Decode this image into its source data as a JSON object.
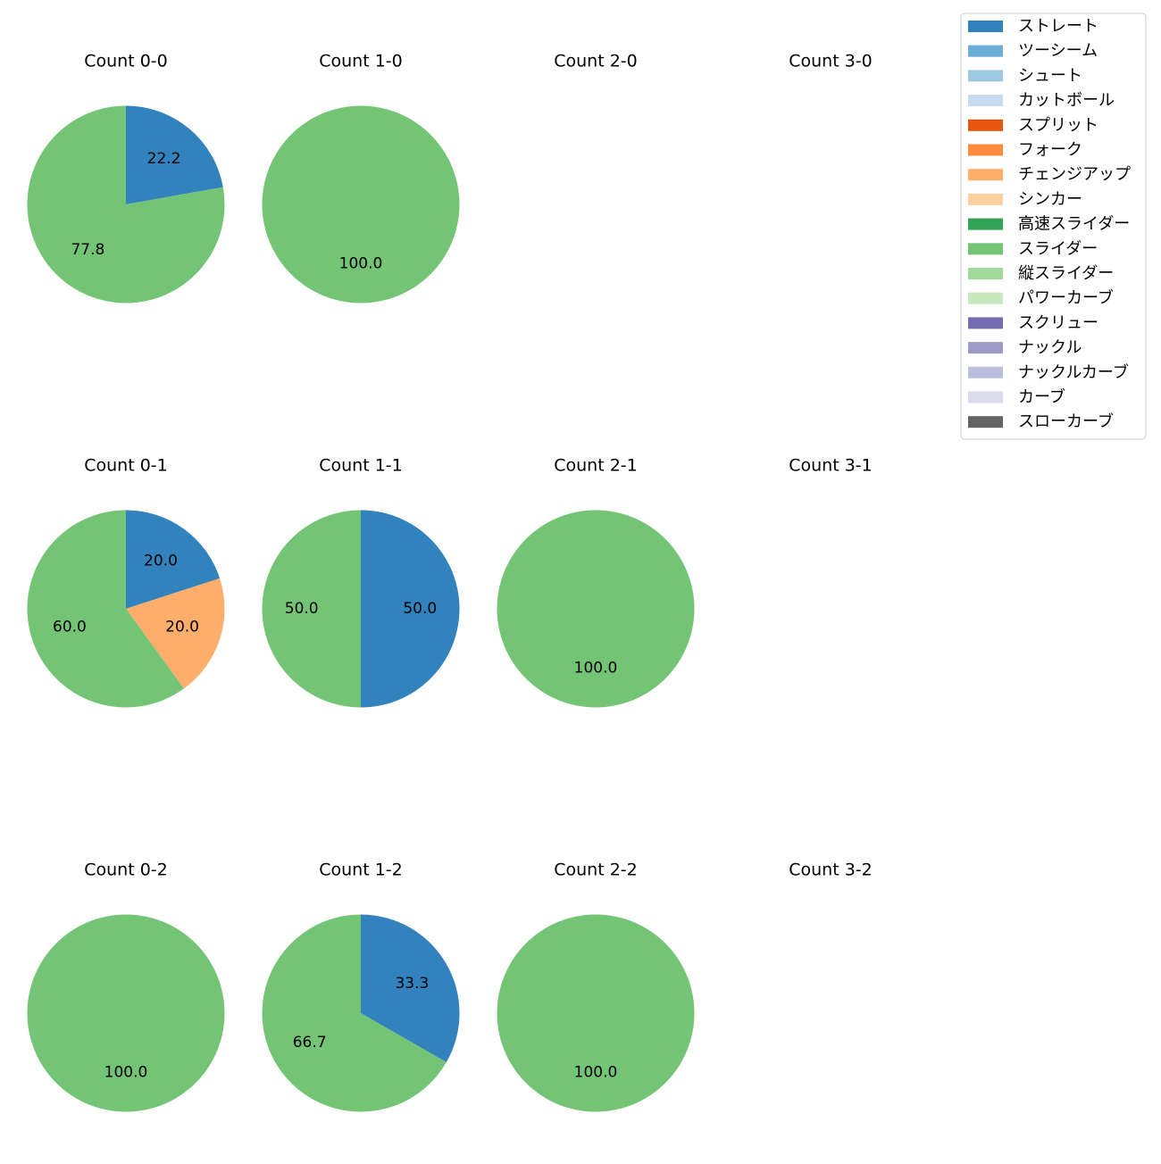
{
  "chart_data": {
    "type": "pie",
    "legend": {
      "placement": "top-right",
      "entries": [
        {
          "label": "ストレート",
          "color": "#3182bd"
        },
        {
          "label": "ツーシーム",
          "color": "#6baed6"
        },
        {
          "label": "シュート",
          "color": "#9ecae1"
        },
        {
          "label": "カットボール",
          "color": "#c6dbef"
        },
        {
          "label": "スプリット",
          "color": "#e6550d"
        },
        {
          "label": "フォーク",
          "color": "#fd8d3c"
        },
        {
          "label": "チェンジアップ",
          "color": "#fdae6b"
        },
        {
          "label": "シンカー",
          "color": "#fdd0a2"
        },
        {
          "label": "高速スライダー",
          "color": "#31a354"
        },
        {
          "label": "スライダー",
          "color": "#74c476"
        },
        {
          "label": "縦スライダー",
          "color": "#a1d99b"
        },
        {
          "label": "パワーカーブ",
          "color": "#c7e9c0"
        },
        {
          "label": "スクリュー",
          "color": "#756bb1"
        },
        {
          "label": "ナックル",
          "color": "#9e9ac8"
        },
        {
          "label": "ナックルカーブ",
          "color": "#bcbddc"
        },
        {
          "label": "カーブ",
          "color": "#dadaeb"
        },
        {
          "label": "スローカーブ",
          "color": "#636363"
        }
      ]
    },
    "panels": [
      {
        "title": "Count 0-0",
        "row": 0,
        "col": 0,
        "slices": [
          {
            "pitch": "ストレート",
            "value": 22.2,
            "label": "22.2"
          },
          {
            "pitch": "スライダー",
            "value": 77.8,
            "label": "77.8"
          }
        ]
      },
      {
        "title": "Count 1-0",
        "row": 0,
        "col": 1,
        "slices": [
          {
            "pitch": "スライダー",
            "value": 100.0,
            "label": "100.0"
          }
        ]
      },
      {
        "title": "Count 2-0",
        "row": 0,
        "col": 2,
        "slices": []
      },
      {
        "title": "Count 3-0",
        "row": 0,
        "col": 3,
        "slices": []
      },
      {
        "title": "Count 0-1",
        "row": 1,
        "col": 0,
        "slices": [
          {
            "pitch": "ストレート",
            "value": 20.0,
            "label": "20.0"
          },
          {
            "pitch": "チェンジアップ",
            "value": 20.0,
            "label": "20.0"
          },
          {
            "pitch": "スライダー",
            "value": 60.0,
            "label": "60.0"
          }
        ]
      },
      {
        "title": "Count 1-1",
        "row": 1,
        "col": 1,
        "slices": [
          {
            "pitch": "ストレート",
            "value": 50.0,
            "label": "50.0"
          },
          {
            "pitch": "スライダー",
            "value": 50.0,
            "label": "50.0"
          }
        ]
      },
      {
        "title": "Count 2-1",
        "row": 1,
        "col": 2,
        "slices": [
          {
            "pitch": "スライダー",
            "value": 100.0,
            "label": "100.0"
          }
        ]
      },
      {
        "title": "Count 3-1",
        "row": 1,
        "col": 3,
        "slices": []
      },
      {
        "title": "Count 0-2",
        "row": 2,
        "col": 0,
        "slices": [
          {
            "pitch": "スライダー",
            "value": 100.0,
            "label": "100.0"
          }
        ]
      },
      {
        "title": "Count 1-2",
        "row": 2,
        "col": 1,
        "slices": [
          {
            "pitch": "ストレート",
            "value": 33.3,
            "label": "33.3"
          },
          {
            "pitch": "スライダー",
            "value": 66.7,
            "label": "66.7"
          }
        ]
      },
      {
        "title": "Count 2-2",
        "row": 2,
        "col": 2,
        "slices": [
          {
            "pitch": "スライダー",
            "value": 100.0,
            "label": "100.0"
          }
        ]
      },
      {
        "title": "Count 3-2",
        "row": 2,
        "col": 3,
        "slices": []
      }
    ]
  }
}
